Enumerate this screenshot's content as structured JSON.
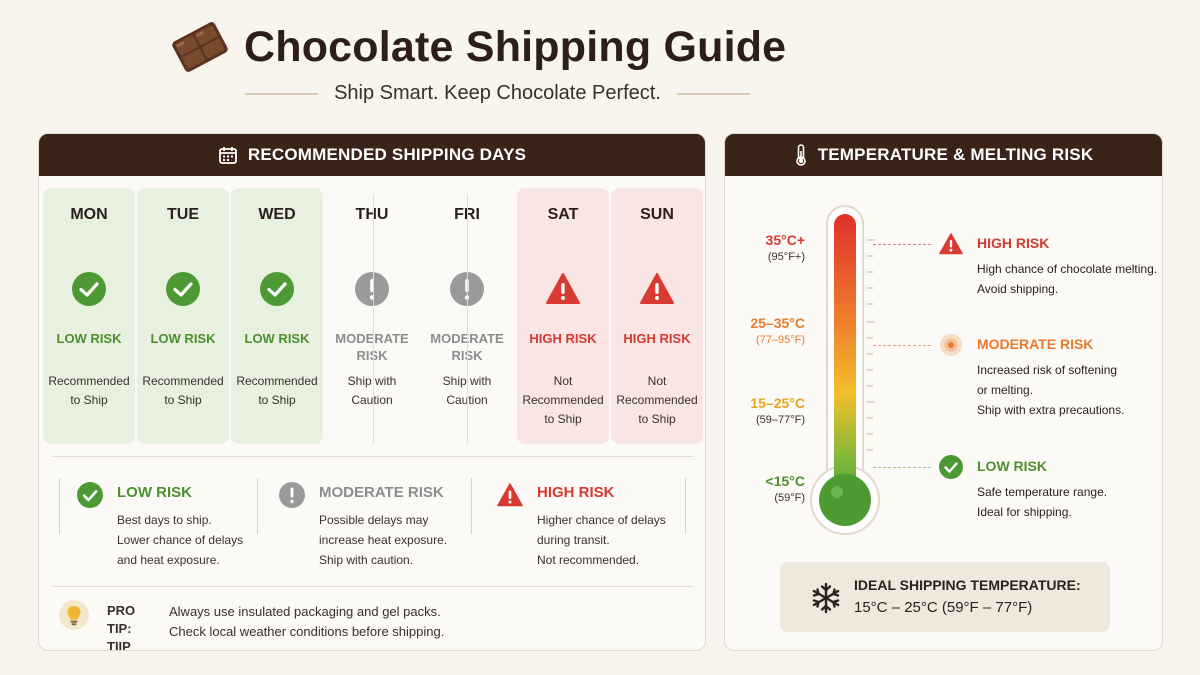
{
  "header": {
    "title": "Chocolate Shipping Guide",
    "subtitle": "Ship Smart. Keep Chocolate Perfect.",
    "logo_icon": "chocolate-bar-icon"
  },
  "colors": {
    "brown_dark": "#3a2319",
    "low": "#4d8f2f",
    "moderate": "#8d8d8d",
    "high": "#d33a32",
    "moderate_orange": "#e87b2c"
  },
  "shipping_days": {
    "title": "RECOMMENDED SHIPPING DAYS",
    "days": [
      {
        "name": "MON",
        "risk": "LOW RISK",
        "note1": "Recommended",
        "note2": "to Ship"
      },
      {
        "name": "TUE",
        "risk": "LOW RISK",
        "note1": "Recommended",
        "note2": "to Ship"
      },
      {
        "name": "WED",
        "risk": "LOW RISK",
        "note1": "Recommended",
        "note2": "to Ship"
      },
      {
        "name": "THU",
        "risk1": "MODERATE",
        "risk2": "RISK",
        "note1": "Ship with",
        "note2": "Caution"
      },
      {
        "name": "FRI",
        "risk1": "MODERATE",
        "risk2": "RISK",
        "note1": "Ship with",
        "note2": "Caution"
      },
      {
        "name": "SAT",
        "risk": "HIGH RISK",
        "note1": "Not Recommended",
        "note2": "to Ship"
      },
      {
        "name": "SUN",
        "risk": "HIGH RISK",
        "note1": "Not Recommended",
        "note2": "to Ship"
      }
    ]
  },
  "legend": [
    {
      "title": "LOW RISK",
      "l1": "Best days to ship.",
      "l2": "Lower chance of delays",
      "l3": "and heat exposure."
    },
    {
      "title": "MODERATE RISK",
      "l1": "Possible delays may",
      "l2": "increase heat exposure.",
      "l3": "Ship with caution."
    },
    {
      "title": "HIGH RISK",
      "l1": "Higher chance of delays",
      "l2": "during transit.",
      "l3": "Not recommended."
    }
  ],
  "pro_tip": {
    "label1": "PRO TIP:",
    "label2": "TIIP",
    "line1": "Always use insulated packaging and gel packs.",
    "line2": "Check local weather conditions before shipping."
  },
  "temperature": {
    "title": "TEMPERATURE & MELTING RISK",
    "scale": [
      {
        "c": "35°C+",
        "f": "(95°F+)"
      },
      {
        "c": "25–35°C",
        "f": "(77–95°F)"
      },
      {
        "c": "15–25°C",
        "f": "(59–77°F)"
      },
      {
        "c": "<15°C",
        "f": "(59°F)"
      }
    ],
    "risks": [
      {
        "title": "HIGH RISK",
        "l1": "High chance of chocolate melting.",
        "l2": "Avoid shipping."
      },
      {
        "title": "MODERATE RISK",
        "l1": "Increased risk of softening",
        "l2": "or melting.",
        "l3": "Ship with extra precautions."
      },
      {
        "title": "LOW RISK",
        "l1": "Safe temperature range.",
        "l2": "Ideal for shipping."
      }
    ],
    "ideal_title": "IDEAL SHIPPING TEMPERATURE:",
    "ideal_value": "15°C – 25°C (59°F – 77°F)"
  }
}
